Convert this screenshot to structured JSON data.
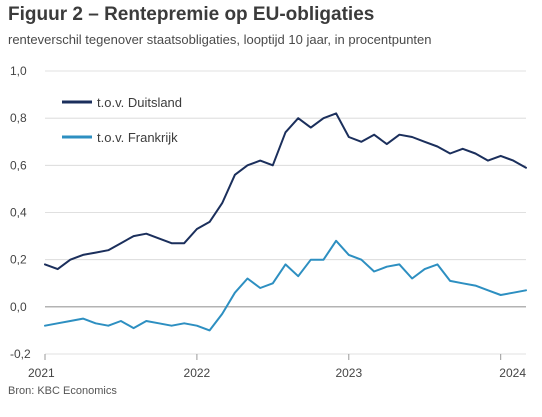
{
  "chart_data": {
    "type": "line",
    "title": "Figuur 2 – Rentepremie  op EU-obligaties",
    "subtitle": "renteverschil tegenover staatsobligaties, looptijd 10 jaar, in procentpunten",
    "source": "Bron: KBC Economics",
    "xlabel": "",
    "ylabel": "",
    "x_ticks": [
      "2021",
      "2022",
      "2023",
      "2024"
    ],
    "y_ticks": [
      "1,0",
      "0,8",
      "0,6",
      "0,4",
      "0,2",
      "0,0",
      "-0,2"
    ],
    "ylim": [
      -0.2,
      1.0
    ],
    "xlim": [
      "2021-01",
      "2024-03"
    ],
    "grid": "horizontal",
    "legend_position": "top-left",
    "x": [
      "2021-01",
      "2021-02",
      "2021-03",
      "2021-04",
      "2021-05",
      "2021-06",
      "2021-07",
      "2021-08",
      "2021-09",
      "2021-10",
      "2021-11",
      "2021-12",
      "2022-01",
      "2022-02",
      "2022-03",
      "2022-04",
      "2022-05",
      "2022-06",
      "2022-07",
      "2022-08",
      "2022-09",
      "2022-10",
      "2022-11",
      "2022-12",
      "2023-01",
      "2023-02",
      "2023-03",
      "2023-04",
      "2023-05",
      "2023-06",
      "2023-07",
      "2023-08",
      "2023-09",
      "2023-10",
      "2023-11",
      "2023-12",
      "2024-01",
      "2024-02",
      "2024-03"
    ],
    "series": [
      {
        "name": "t.o.v. Duitsland",
        "color": "#1b2f5c",
        "values": [
          0.18,
          0.16,
          0.2,
          0.22,
          0.23,
          0.24,
          0.27,
          0.3,
          0.31,
          0.29,
          0.27,
          0.27,
          0.33,
          0.36,
          0.44,
          0.56,
          0.6,
          0.62,
          0.6,
          0.74,
          0.8,
          0.76,
          0.8,
          0.82,
          0.72,
          0.7,
          0.73,
          0.69,
          0.73,
          0.72,
          0.7,
          0.68,
          0.65,
          0.67,
          0.65,
          0.62,
          0.64,
          0.62,
          0.59
        ]
      },
      {
        "name": "t.o.v. Frankrijk",
        "color": "#2d8fc1",
        "values": [
          -0.08,
          -0.07,
          -0.06,
          -0.05,
          -0.07,
          -0.08,
          -0.06,
          -0.09,
          -0.06,
          -0.07,
          -0.08,
          -0.07,
          -0.08,
          -0.1,
          -0.03,
          0.06,
          0.12,
          0.08,
          0.1,
          0.18,
          0.13,
          0.2,
          0.2,
          0.28,
          0.22,
          0.2,
          0.15,
          0.17,
          0.18,
          0.12,
          0.16,
          0.18,
          0.11,
          0.1,
          0.09,
          0.07,
          0.05,
          0.06,
          0.07
        ]
      }
    ]
  }
}
